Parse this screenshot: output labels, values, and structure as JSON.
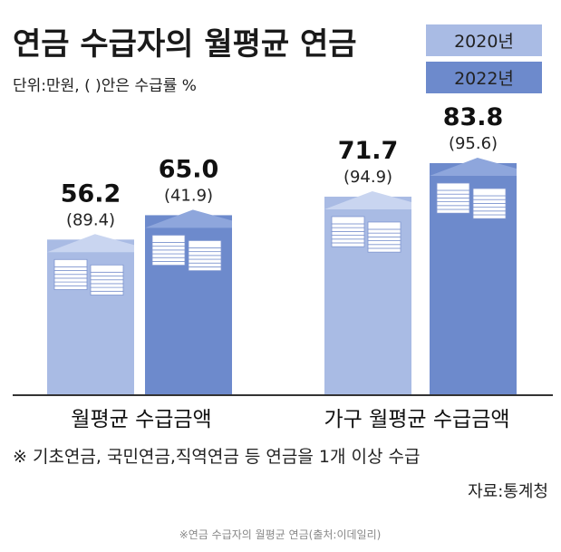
{
  "chart_data": {
    "type": "bar",
    "title": "연금 수급자의 월평균 연금",
    "unit_label": "단위:만원, (    )안은 수급률 %",
    "categories": [
      "월평균 수급금액",
      "가구 월평균 수급금액"
    ],
    "series": [
      {
        "name": "2020년",
        "values": [
          56.2,
          71.7
        ],
        "rates": [
          89.4,
          94.9
        ]
      },
      {
        "name": "2022년",
        "values": [
          65.0,
          83.8
        ],
        "rates": [
          41.9,
          95.6
        ]
      }
    ],
    "value_labels": [
      [
        "56.2",
        "71.7"
      ],
      [
        "65.0",
        "83.8"
      ]
    ],
    "rate_labels": [
      [
        "(89.4)",
        "(94.9)"
      ],
      [
        "(41.9)",
        "(95.6)"
      ]
    ],
    "note": "※ 기초연금, 국민연금,직역연금 등 연금을 1개 이상 수급",
    "source": "자료:통계청",
    "legend_position": "top-right",
    "colors": {
      "2020": "#a9bbe4",
      "2022": "#6d8acc"
    }
  },
  "caption": "※연금 수급자의 월평균 연금(출처:이데일리)"
}
